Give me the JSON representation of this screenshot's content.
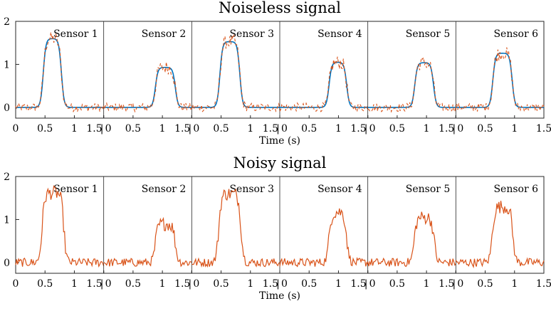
{
  "chart_data": [
    {
      "type": "line",
      "title": "Noiseless signal",
      "xlabel": "Time (s)",
      "ylabel": "",
      "ylim": [
        -0.25,
        2
      ],
      "xlim_per_panel": [
        0,
        1.5
      ],
      "y_ticks": [
        "0",
        "1",
        "2"
      ],
      "x_ticks": [
        "0",
        "0.5",
        "1",
        "1.5"
      ],
      "grid": false,
      "panels": [
        {
          "label": "Sensor 1",
          "pulse": {
            "start": 0.47,
            "end": 0.78,
            "height": 1.6
          }
        },
        {
          "label": "Sensor 2",
          "pulse": {
            "start": 0.88,
            "end": 1.22,
            "height": 0.93
          }
        },
        {
          "label": "Sensor 3",
          "pulse": {
            "start": 0.48,
            "end": 0.82,
            "height": 1.53
          }
        },
        {
          "label": "Sensor 4",
          "pulse": {
            "start": 0.84,
            "end": 1.14,
            "height": 1.05
          }
        },
        {
          "label": "Sensor 5",
          "pulse": {
            "start": 0.8,
            "end": 1.12,
            "height": 1.04
          }
        },
        {
          "label": "Sensor 6",
          "pulse": {
            "start": 0.63,
            "end": 0.96,
            "height": 1.26
          }
        }
      ],
      "series": [
        {
          "color": "#0072BD",
          "style": "solid"
        },
        {
          "color": "#D95319",
          "style": "dashed"
        }
      ]
    },
    {
      "type": "line",
      "title": "Noisy signal",
      "xlabel": "Time (s)",
      "ylabel": "",
      "ylim": [
        -0.25,
        2
      ],
      "xlim_per_panel": [
        0,
        1.5
      ],
      "y_ticks": [
        "0",
        "1",
        "2"
      ],
      "x_ticks": [
        "0",
        "0.5",
        "1",
        "1.5"
      ],
      "grid": false,
      "panels": [
        {
          "label": "Sensor 1",
          "pulse": {
            "start": 0.45,
            "end": 0.82,
            "height": 1.62
          }
        },
        {
          "label": "Sensor 2",
          "pulse": {
            "start": 0.88,
            "end": 1.22,
            "height": 0.9
          }
        },
        {
          "label": "Sensor 3",
          "pulse": {
            "start": 0.46,
            "end": 0.84,
            "height": 1.6
          }
        },
        {
          "label": "Sensor 4",
          "pulse": {
            "start": 0.84,
            "end": 1.14,
            "height": 1.18
          }
        },
        {
          "label": "Sensor 5",
          "pulse": {
            "start": 0.79,
            "end": 1.13,
            "height": 1.05
          }
        },
        {
          "label": "Sensor 6",
          "pulse": {
            "start": 0.62,
            "end": 0.97,
            "height": 1.3
          }
        }
      ],
      "series": [
        {
          "color": "#D95319",
          "style": "solid"
        }
      ]
    }
  ]
}
